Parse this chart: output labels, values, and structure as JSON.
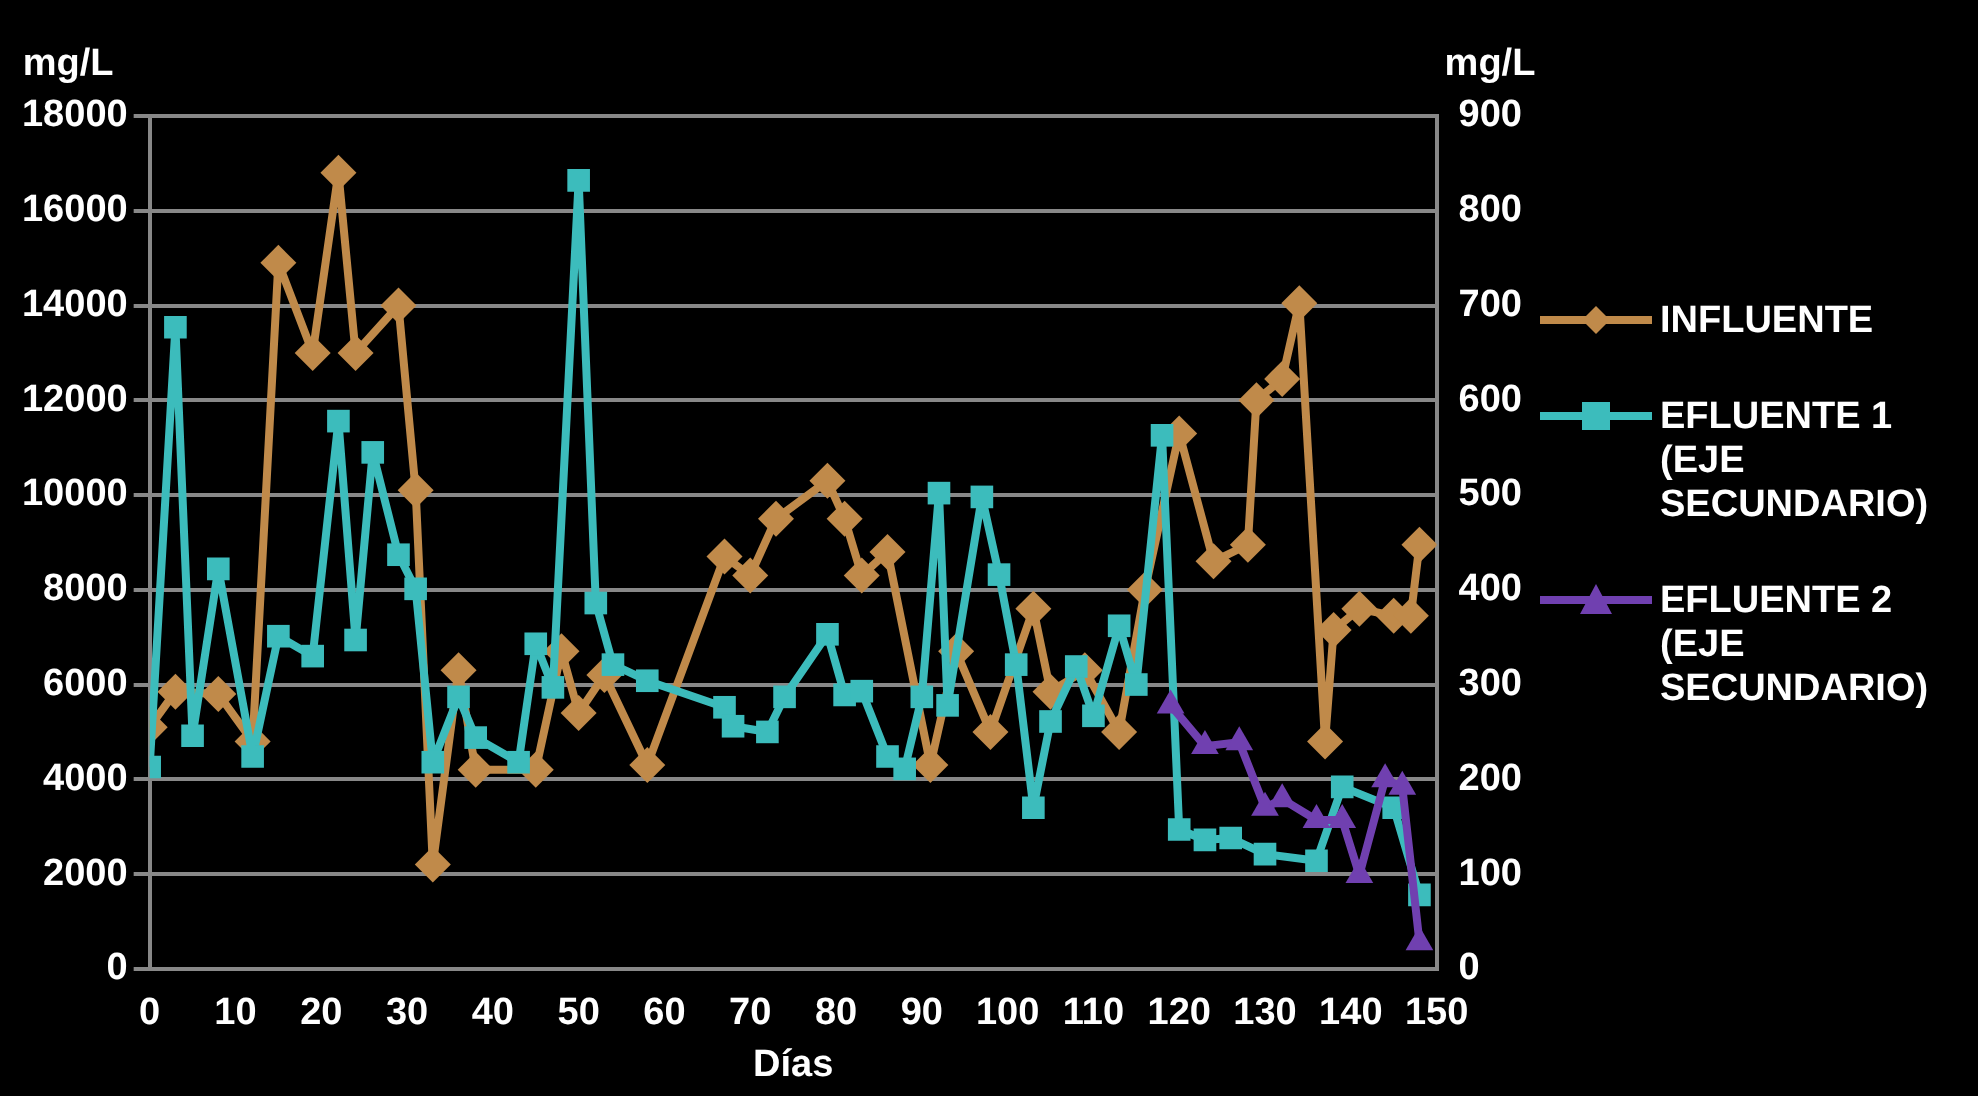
{
  "chart_data": {
    "type": "line",
    "xlabel": "Días",
    "ylabel": "mg/L",
    "y2label": "mg/L",
    "xlim": [
      0,
      150
    ],
    "xticks": [
      0,
      10,
      20,
      30,
      40,
      50,
      60,
      70,
      80,
      90,
      100,
      110,
      120,
      130,
      140,
      150
    ],
    "ylim": [
      0,
      18000
    ],
    "yticks": [
      0,
      2000,
      4000,
      6000,
      8000,
      10000,
      12000,
      14000,
      16000,
      18000
    ],
    "y2lim": [
      0,
      900
    ],
    "y2ticks": [
      0,
      100,
      200,
      300,
      400,
      500,
      600,
      700,
      800,
      900
    ],
    "grid": "y",
    "legend": "right",
    "line_style": "solid",
    "series": [
      {
        "name": "INFLUENTE",
        "color": "#c08a4a",
        "marker": "diamond",
        "x": [
          0,
          3,
          8,
          12,
          15,
          19,
          22,
          24,
          29,
          31,
          33,
          36,
          38,
          45,
          48,
          50,
          53,
          58,
          67,
          70,
          73,
          79,
          81,
          83,
          86,
          91,
          94,
          98,
          103,
          105,
          109,
          113,
          116,
          120,
          124,
          128,
          129,
          132,
          134,
          137,
          138,
          141,
          145,
          147,
          148
        ],
        "values": [
          5100,
          5850,
          5800,
          4800,
          14900,
          13000,
          16800,
          13000,
          14000,
          10100,
          2200,
          6300,
          4200,
          4200,
          6700,
          5400,
          6200,
          4300,
          8700,
          8300,
          9500,
          10300,
          9500,
          8300,
          8800,
          4300,
          6700,
          5000,
          7600,
          5850,
          6300,
          5000,
          8000,
          11300,
          8600,
          8950,
          12000,
          12450,
          14050,
          4800,
          7150,
          7600,
          7450,
          7450,
          8950
        ]
      },
      {
        "name": "EFLUENTE 1 (EJE SECUNDARIO)",
        "color": "#3cbcbc",
        "marker": "square",
        "axis": "y2",
        "x": [
          0,
          3,
          5,
          8,
          12,
          15,
          19,
          22,
          24,
          26,
          29,
          31,
          33,
          36,
          38,
          43,
          45,
          47,
          50,
          52,
          54,
          58,
          67,
          68,
          72,
          74,
          79,
          81,
          83,
          86,
          88,
          90,
          92,
          93,
          97,
          99,
          101,
          103,
          105,
          108,
          110,
          113,
          115,
          118,
          120,
          123,
          126,
          130,
          136,
          139,
          145,
          148
        ],
        "values": [
          213,
          677,
          246,
          422,
          224,
          351,
          330,
          578,
          347,
          545,
          437,
          401,
          218,
          287,
          244,
          218,
          343,
          297,
          832,
          386,
          321,
          304,
          276,
          256,
          250,
          287,
          353,
          289,
          293,
          224,
          211,
          287,
          502,
          278,
          498,
          416,
          321,
          170,
          261,
          319,
          267,
          362,
          300,
          563,
          147,
          136,
          138,
          121,
          114,
          192,
          170,
          78
        ]
      },
      {
        "name": "EFLUENTE 2 (EJE SECUNDARIO)",
        "color": "#7040b0",
        "marker": "triangle",
        "axis": "y2",
        "x": [
          119,
          123,
          127,
          130,
          132,
          136,
          139,
          141,
          144,
          146,
          148
        ],
        "values": [
          278,
          235,
          239,
          170,
          179,
          157,
          157,
          99,
          200,
          192,
          28
        ]
      }
    ]
  }
}
